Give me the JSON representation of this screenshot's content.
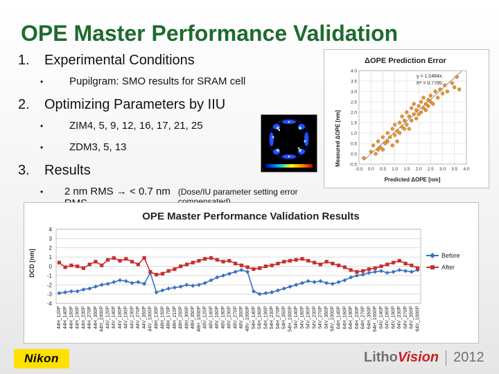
{
  "slide": {
    "title": "OPE Master Performance Validation",
    "items": [
      {
        "num": "1.",
        "text": "Experimental Conditions",
        "sub": [
          {
            "bullet": "•",
            "text": "Pupilgram: SMO results for SRAM cell"
          }
        ]
      },
      {
        "num": "2.",
        "text": "Optimizing Parameters by IIU",
        "sub": [
          {
            "bullet": "•",
            "text": "ZIM4, 5, 9, 12, 16, 17, 21, 25"
          },
          {
            "bullet": "•",
            "text": "ZDM3, 5, 13"
          }
        ]
      },
      {
        "num": "3.",
        "text": "Results",
        "sub": [
          {
            "bullet": "•",
            "text": "2 nm RMS → < 0.7 nm RMS",
            "note": "(Dose/IU parameter setting error compensated)"
          }
        ]
      }
    ]
  },
  "footer": {
    "logo": "Nikon",
    "brand1": "Litho",
    "brand2": "Vision",
    "year": "2012"
  },
  "chart_data": [
    {
      "type": "scatter",
      "title": "ΔOPE Prediction Error",
      "xlabel": "Predicted ΔOPE [nm]",
      "ylabel": "Measured ΔOPE [nm]",
      "xlim": [
        -0.5,
        4.0
      ],
      "ylim": [
        -0.5,
        4.0
      ],
      "xticks": [
        "-0.5",
        "0.0",
        "0.5",
        "1.0",
        "1.5",
        "2.0",
        "2.5",
        "3.0",
        "3.5",
        "4.0"
      ],
      "yticks": [
        "-0.5",
        "0.0",
        "0.5",
        "1.0",
        "1.5",
        "2.0",
        "2.5",
        "3.0",
        "3.5",
        "4.0"
      ],
      "grid": true,
      "trendline": {
        "slope": 1.0464,
        "eq": "y = 1.0464x",
        "r2": "R² = 0.7785"
      },
      "points": [
        [
          -0.3,
          -0.2
        ],
        [
          0.0,
          0.1
        ],
        [
          0.1,
          0.4
        ],
        [
          0.2,
          0.0
        ],
        [
          0.3,
          0.2
        ],
        [
          0.3,
          0.6
        ],
        [
          0.4,
          0.3
        ],
        [
          0.5,
          0.8
        ],
        [
          0.5,
          0.2
        ],
        [
          0.6,
          0.5
        ],
        [
          0.7,
          1.0
        ],
        [
          0.7,
          0.6
        ],
        [
          0.8,
          0.8
        ],
        [
          0.9,
          0.4
        ],
        [
          0.9,
          1.2
        ],
        [
          1.0,
          0.9
        ],
        [
          1.0,
          1.4
        ],
        [
          1.1,
          1.1
        ],
        [
          1.1,
          0.6
        ],
        [
          1.2,
          1.5
        ],
        [
          1.2,
          1.0
        ],
        [
          1.3,
          1.3
        ],
        [
          1.3,
          1.8
        ],
        [
          1.4,
          1.2
        ],
        [
          1.4,
          1.6
        ],
        [
          1.5,
          2.0
        ],
        [
          1.5,
          1.4
        ],
        [
          1.6,
          1.8
        ],
        [
          1.6,
          1.2
        ],
        [
          1.7,
          2.2
        ],
        [
          1.7,
          1.6
        ],
        [
          1.8,
          1.9
        ],
        [
          1.8,
          2.4
        ],
        [
          1.9,
          1.7
        ],
        [
          1.9,
          2.1
        ],
        [
          2.0,
          2.3
        ],
        [
          2.0,
          1.9
        ],
        [
          2.1,
          2.5
        ],
        [
          2.1,
          2.0
        ],
        [
          2.2,
          2.2
        ],
        [
          2.2,
          2.7
        ],
        [
          2.3,
          2.1
        ],
        [
          2.3,
          2.4
        ],
        [
          2.4,
          2.6
        ],
        [
          2.4,
          2.3
        ],
        [
          2.5,
          2.8
        ],
        [
          2.5,
          2.5
        ],
        [
          2.6,
          2.4
        ],
        [
          2.7,
          3.0
        ],
        [
          2.8,
          2.7
        ],
        [
          2.9,
          3.1
        ],
        [
          3.0,
          2.9
        ],
        [
          3.1,
          3.3
        ],
        [
          3.2,
          3.0
        ],
        [
          3.4,
          3.4
        ],
        [
          3.5,
          3.2
        ],
        [
          3.6,
          3.7
        ],
        [
          3.7,
          3.1
        ]
      ]
    },
    {
      "type": "line",
      "title": "OPE Master Performance Validation Results",
      "ylabel": "DCD [nm]",
      "ylim": [
        -4,
        4
      ],
      "yticks": [
        "4",
        "3",
        "2",
        "1",
        "0",
        "-1",
        "-2",
        "-3",
        "-4"
      ],
      "grid": true,
      "legend": "right",
      "categories": [
        "44H_120P",
        "44H_140P",
        "44H_160P",
        "44H_190P",
        "44H_230P",
        "44H_270P",
        "44H_350P",
        "44H_1000P",
        "44V_120P",
        "44V_140P",
        "44V_160P",
        "44V_190P",
        "44V_230P",
        "44V_270P",
        "44V_350P",
        "44V_1000P",
        "48H_130P",
        "48H_150P",
        "48H_170P",
        "48H_210P",
        "48H_250P",
        "48H_300P",
        "48H_350P",
        "48H_1000P",
        "48V_120P",
        "48V_140P",
        "48V_160P",
        "48V_190P",
        "48V_230P",
        "48V_270P",
        "48V_350P",
        "48V_1000P",
        "54H_140P",
        "54H_160P",
        "54H_190P",
        "54H_230P",
        "54H_270P",
        "54H_350P",
        "54H_1000P",
        "54V_140P",
        "54V_160P",
        "54V_190P",
        "54V_230P",
        "54V_270P",
        "54V_350P",
        "54V_1000P",
        "64H_140P",
        "64H_160P",
        "64H_190P",
        "64H_230P",
        "64H_270P",
        "64H_350P",
        "64H_1000P",
        "64V_140P",
        "64V_160P",
        "64V_190P",
        "64V_230P",
        "64V_270P",
        "64V_350P",
        "64V_1000P"
      ],
      "series": [
        {
          "name": "Before",
          "color": "#3a6fc4",
          "values": [
            -2.9,
            -2.8,
            -2.7,
            -2.7,
            -2.5,
            -2.4,
            -2.2,
            -2.0,
            -1.9,
            -1.7,
            -1.5,
            -1.6,
            -1.8,
            -1.7,
            -1.9,
            -0.7,
            -2.8,
            -2.6,
            -2.4,
            -2.3,
            -2.2,
            -2.0,
            -2.1,
            -2.0,
            -1.8,
            -1.5,
            -1.2,
            -1.0,
            -0.8,
            -0.6,
            -0.4,
            -0.6,
            -2.7,
            -3.0,
            -2.9,
            -2.8,
            -2.6,
            -2.4,
            -2.2,
            -2.0,
            -1.8,
            -1.6,
            -1.7,
            -1.6,
            -1.8,
            -1.9,
            -1.7,
            -1.5,
            -1.2,
            -1.0,
            -0.9,
            -0.7,
            -0.6,
            -0.5,
            -0.7,
            -0.6,
            -0.4,
            -0.5,
            -0.6,
            -0.4
          ]
        },
        {
          "name": "After",
          "color": "#c8302c",
          "values": [
            0.4,
            -0.1,
            0.1,
            0.0,
            -0.2,
            0.2,
            0.5,
            0.1,
            0.7,
            0.9,
            0.6,
            0.8,
            0.5,
            0.2,
            0.9,
            -0.6,
            -0.9,
            -0.8,
            -0.5,
            -0.3,
            0.0,
            0.2,
            0.4,
            0.6,
            0.8,
            0.9,
            0.7,
            0.5,
            0.6,
            0.3,
            0.1,
            -0.1,
            -0.3,
            -0.2,
            0.0,
            0.1,
            0.3,
            0.5,
            0.6,
            0.7,
            0.8,
            0.6,
            0.4,
            0.2,
            0.5,
            0.3,
            0.1,
            -0.1,
            -0.4,
            -0.6,
            -0.5,
            -0.3,
            -0.2,
            0.0,
            0.2,
            0.4,
            0.6,
            0.3,
            0.1,
            -0.2
          ]
        }
      ]
    }
  ]
}
